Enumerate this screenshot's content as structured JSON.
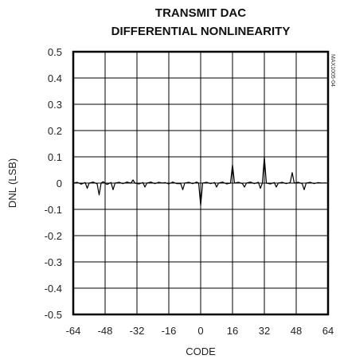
{
  "chart_data": {
    "type": "line",
    "title": [
      "TRANSMIT DAC",
      "DIFFERENTIAL NONLINEARITY"
    ],
    "xlabel": "CODE",
    "ylabel": "DNL (LSB)",
    "xlim": [
      -64,
      64
    ],
    "ylim": [
      -0.5,
      0.5
    ],
    "x_ticks": [
      -64,
      -48,
      -32,
      -16,
      0,
      16,
      32,
      48,
      64
    ],
    "y_ticks": [
      0.5,
      0.4,
      0.3,
      0.2,
      0.1,
      0,
      -0.1,
      -0.2,
      -0.3,
      -0.4,
      -0.5
    ],
    "grid": true,
    "annotation": "MAX1005-04",
    "series": [
      {
        "values": [
          [
            -64,
            0.0
          ],
          [
            -62,
            0.003
          ],
          [
            -60,
            -0.004
          ],
          [
            -58,
            0.002
          ],
          [
            -57,
            -0.02
          ],
          [
            -56,
            0.0
          ],
          [
            -54,
            0.004
          ],
          [
            -52,
            -0.003
          ],
          [
            -51,
            -0.045
          ],
          [
            -50,
            0.0
          ],
          [
            -49,
            0.005
          ],
          [
            -47,
            -0.005
          ],
          [
            -45,
            0.002
          ],
          [
            -44,
            -0.025
          ],
          [
            -43,
            0.0
          ],
          [
            -41,
            0.003
          ],
          [
            -39,
            -0.002
          ],
          [
            -37,
            0.004
          ],
          [
            -35,
            0.0
          ],
          [
            -34,
            0.012
          ],
          [
            -33,
            0.0
          ],
          [
            -31,
            -0.003
          ],
          [
            -29,
            0.002
          ],
          [
            -28,
            -0.015
          ],
          [
            -27,
            0.0
          ],
          [
            -25,
            0.004
          ],
          [
            -23,
            -0.002
          ],
          [
            -21,
            0.003
          ],
          [
            -19,
            0.0
          ],
          [
            -18,
            0.002
          ],
          [
            -16,
            -0.003
          ],
          [
            -14,
            0.004
          ],
          [
            -12,
            -0.002
          ],
          [
            -10,
            -0.002
          ],
          [
            -9,
            -0.025
          ],
          [
            -8,
            0.0
          ],
          [
            -6,
            0.003
          ],
          [
            -4,
            -0.002
          ],
          [
            -2,
            0.004
          ],
          [
            -1,
            0.0
          ],
          [
            0,
            -0.085
          ],
          [
            1,
            0.0
          ],
          [
            3,
            0.003
          ],
          [
            5,
            -0.002
          ],
          [
            7,
            0.002
          ],
          [
            8,
            -0.015
          ],
          [
            9,
            0.0
          ],
          [
            11,
            0.004
          ],
          [
            13,
            -0.003
          ],
          [
            15,
            0.0
          ],
          [
            16,
            0.07
          ],
          [
            17,
            0.0
          ],
          [
            19,
            0.003
          ],
          [
            21,
            -0.002
          ],
          [
            22,
            -0.015
          ],
          [
            23,
            0.0
          ],
          [
            25,
            0.004
          ],
          [
            27,
            -0.002
          ],
          [
            29,
            0.003
          ],
          [
            30,
            -0.02
          ],
          [
            31,
            0.0
          ],
          [
            32,
            0.1
          ],
          [
            33,
            0.0
          ],
          [
            35,
            -0.003
          ],
          [
            37,
            0.002
          ],
          [
            38,
            -0.015
          ],
          [
            39,
            0.0
          ],
          [
            41,
            0.003
          ],
          [
            43,
            -0.002
          ],
          [
            45,
            0.002
          ],
          [
            46,
            0.04
          ],
          [
            47,
            0.0
          ],
          [
            49,
            0.003
          ],
          [
            51,
            -0.002
          ],
          [
            52,
            -0.025
          ],
          [
            53,
            0.0
          ],
          [
            55,
            0.003
          ],
          [
            57,
            -0.002
          ],
          [
            59,
            0.002
          ],
          [
            61,
            0.0
          ],
          [
            63,
            0.001
          ]
        ]
      }
    ]
  }
}
